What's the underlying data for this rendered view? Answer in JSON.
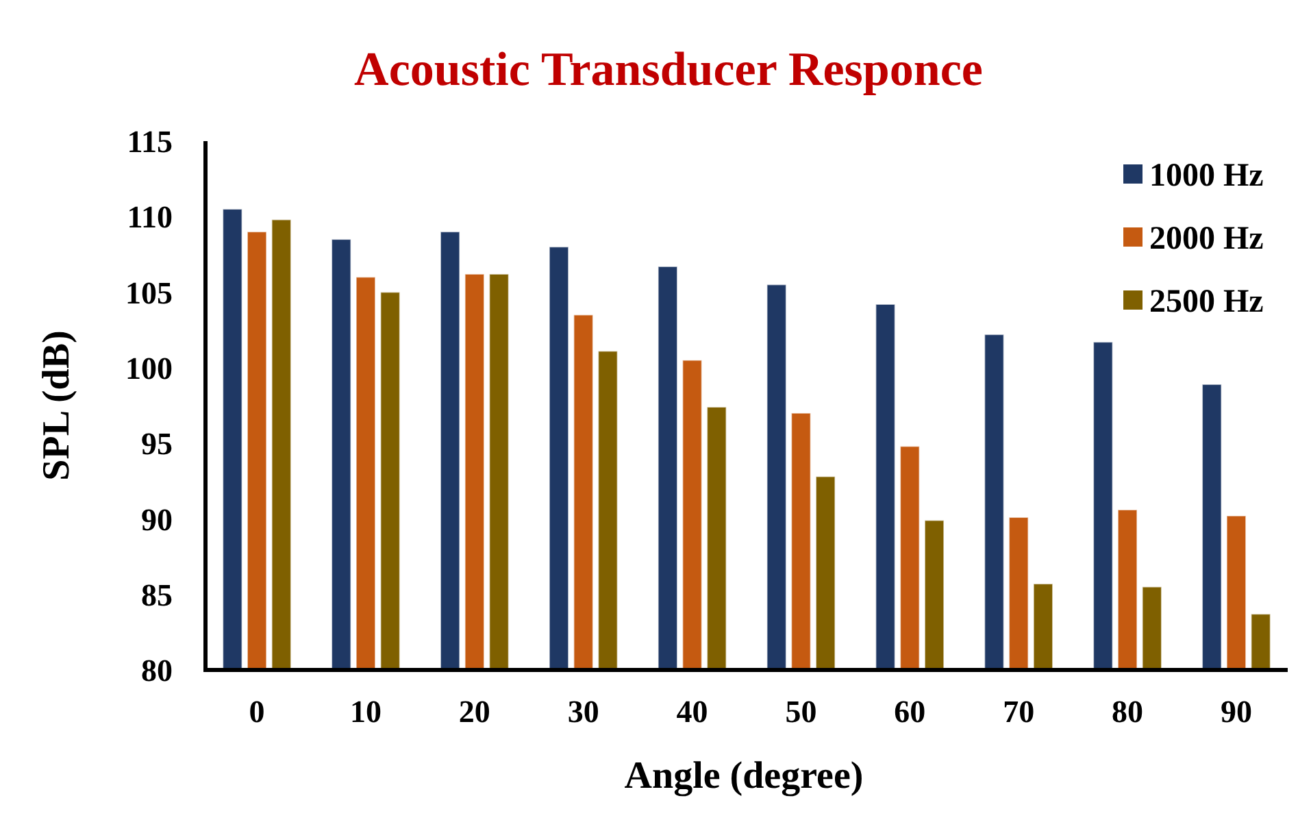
{
  "chart_data": {
    "type": "bar",
    "title": "Acoustic Transducer Responce",
    "xlabel": "Angle (degree)",
    "ylabel": "SPL (dB)",
    "categories": [
      "0",
      "10",
      "20",
      "30",
      "40",
      "50",
      "60",
      "70",
      "80",
      "90"
    ],
    "series": [
      {
        "name": "1000 Hz",
        "color": "#1f3864",
        "values": [
          110.5,
          108.5,
          109.0,
          108.0,
          106.7,
          105.5,
          104.2,
          102.2,
          101.7,
          98.9
        ]
      },
      {
        "name": "2000 Hz",
        "color": "#c55a11",
        "values": [
          109.0,
          106.0,
          106.2,
          103.5,
          100.5,
          97.0,
          94.8,
          90.1,
          90.6,
          90.2
        ]
      },
      {
        "name": "2500 Hz",
        "color": "#7f6000",
        "values": [
          109.8,
          105.0,
          106.2,
          101.1,
          97.4,
          92.8,
          89.9,
          85.7,
          85.5,
          83.7
        ]
      }
    ],
    "ylim": [
      80,
      115
    ],
    "yticks": [
      80,
      85,
      90,
      95,
      100,
      105,
      110,
      115
    ],
    "legend": "top right"
  }
}
